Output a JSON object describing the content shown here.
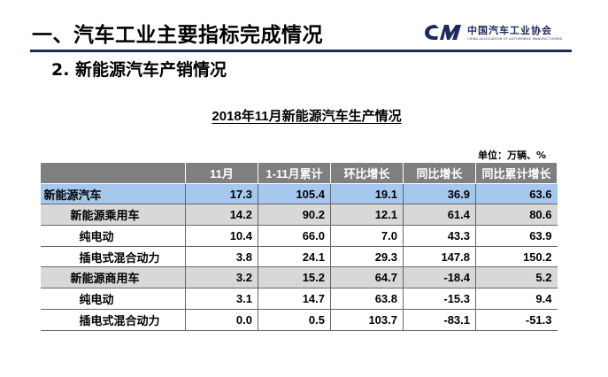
{
  "header": {
    "title": "一、汽车工业主要指标完成情况",
    "logo_cn": "中国汽车工业协会",
    "logo_en": "CHINA ASSOCIATION OF AUTOMOBILE MANUFACTURERS"
  },
  "subtitle": "2. 新能源汽车产销情况",
  "table_title": "2018年11月新能源汽车生产情况",
  "unit": "单位：万辆、%",
  "columns": [
    "",
    "11月",
    "1-11月累计",
    "环比增长",
    "同比增长",
    "同比累计增长"
  ],
  "rows": [
    {
      "label": "新能源汽车",
      "level": "total",
      "values": [
        "17.3",
        "105.4",
        "19.1",
        "36.9",
        "63.6"
      ]
    },
    {
      "label": "新能源乘用车",
      "level": "group",
      "values": [
        "14.2",
        "90.2",
        "12.1",
        "61.4",
        "80.6"
      ]
    },
    {
      "label": "纯电动",
      "level": "sub",
      "values": [
        "10.4",
        "66.0",
        "7.0",
        "43.3",
        "63.9"
      ]
    },
    {
      "label": "插电式混合动力",
      "level": "sub",
      "values": [
        "3.8",
        "24.1",
        "29.3",
        "147.8",
        "150.2"
      ]
    },
    {
      "label": "新能源商用车",
      "level": "group",
      "values": [
        "3.2",
        "15.2",
        "64.7",
        "-18.4",
        "5.2"
      ]
    },
    {
      "label": "纯电动",
      "level": "sub",
      "values": [
        "3.1",
        "14.7",
        "63.8",
        "-15.3",
        "9.4"
      ]
    },
    {
      "label": "插电式混合动力",
      "level": "sub",
      "values": [
        "0.0",
        "0.5",
        "103.7",
        "-83.1",
        "-51.3"
      ]
    }
  ],
  "colors": {
    "header_fill": "#7f7f7f",
    "total_row": "#a6c8ee",
    "group_row": "#d8d8d8",
    "brand_navy": "#1f2a5c"
  }
}
